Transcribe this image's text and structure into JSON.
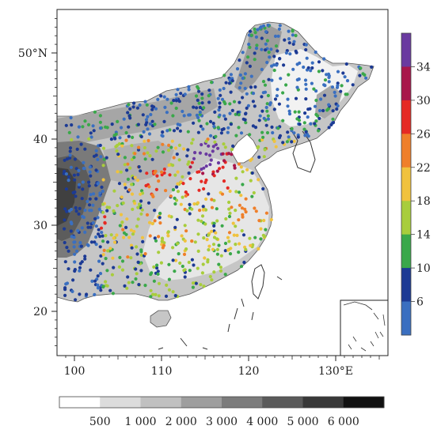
{
  "lat_axis": {
    "labels": [
      "20",
      "30",
      "40",
      "50°N"
    ],
    "values": [
      20,
      30,
      40,
      50
    ]
  },
  "lon_axis": {
    "labels": [
      "100",
      "110",
      "120",
      "130°E"
    ],
    "values": [
      100,
      110,
      120,
      130
    ]
  },
  "color_bar": {
    "ticks": [
      "6",
      "10",
      "14",
      "18",
      "22",
      "26",
      "30",
      "34"
    ],
    "colors": [
      "#3a6fc0",
      "#1c3a94",
      "#3aa84a",
      "#a8cd3c",
      "#f0c23e",
      "#ef7f2a",
      "#e52a24",
      "#a8164a",
      "#6a3aa0"
    ]
  },
  "elevation_bar": {
    "labels": [
      "500",
      "1 000",
      "2 000",
      "3 000",
      "4 000",
      "5 000",
      "6 000"
    ],
    "colors": [
      "#ffffff",
      "#dcdcdc",
      "#c0c0c0",
      "#9e9e9e",
      "#7c7c7c",
      "#5a5a5a",
      "#383838",
      "#111111"
    ]
  }
}
